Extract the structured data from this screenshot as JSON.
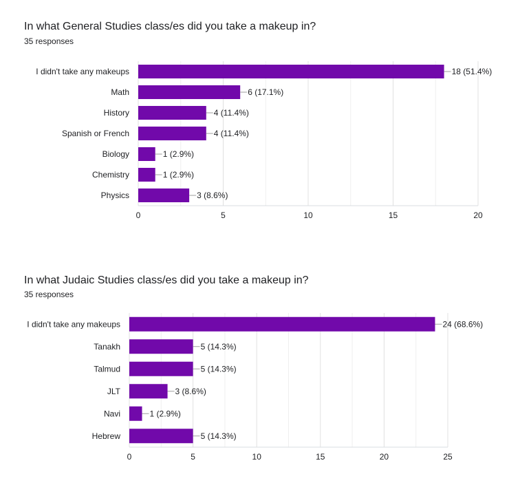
{
  "chart_data": [
    {
      "type": "bar",
      "orientation": "horizontal",
      "title": "In what General Studies class/es did you take a makeup in?",
      "subtitle": "35 responses",
      "categories": [
        "I didn't take any makeups",
        "Math",
        "History",
        "Spanish or French",
        "Biology",
        "Chemistry",
        "Physics"
      ],
      "values": [
        18,
        6,
        4,
        4,
        1,
        1,
        3
      ],
      "data_labels": [
        "18 (51.4%)",
        "6 (17.1%)",
        "4 (11.4%)",
        "4 (11.4%)",
        "1 (2.9%)",
        "1 (2.9%)",
        "3 (8.6%)"
      ],
      "xlim": [
        0,
        20
      ],
      "xticks": [
        "0",
        "5",
        "10",
        "15",
        "20"
      ],
      "grid": true,
      "bar_color": "#7109aa"
    },
    {
      "type": "bar",
      "orientation": "horizontal",
      "title": "In what Judaic Studies class/es did you take a makeup in?",
      "subtitle": "35 responses",
      "categories": [
        "I didn't take any makeups",
        "Tanakh",
        "Talmud",
        "JLT",
        "Navi",
        "Hebrew"
      ],
      "values": [
        24,
        5,
        5,
        3,
        1,
        5
      ],
      "data_labels": [
        "24 (68.6%)",
        "5 (14.3%)",
        "5 (14.3%)",
        "3 (8.6%)",
        "1 (2.9%)",
        "5 (14.3%)"
      ],
      "xlim": [
        0,
        25
      ],
      "xticks": [
        "0",
        "5",
        "10",
        "15",
        "20",
        "25"
      ],
      "grid": true,
      "bar_color": "#7109aa"
    }
  ]
}
